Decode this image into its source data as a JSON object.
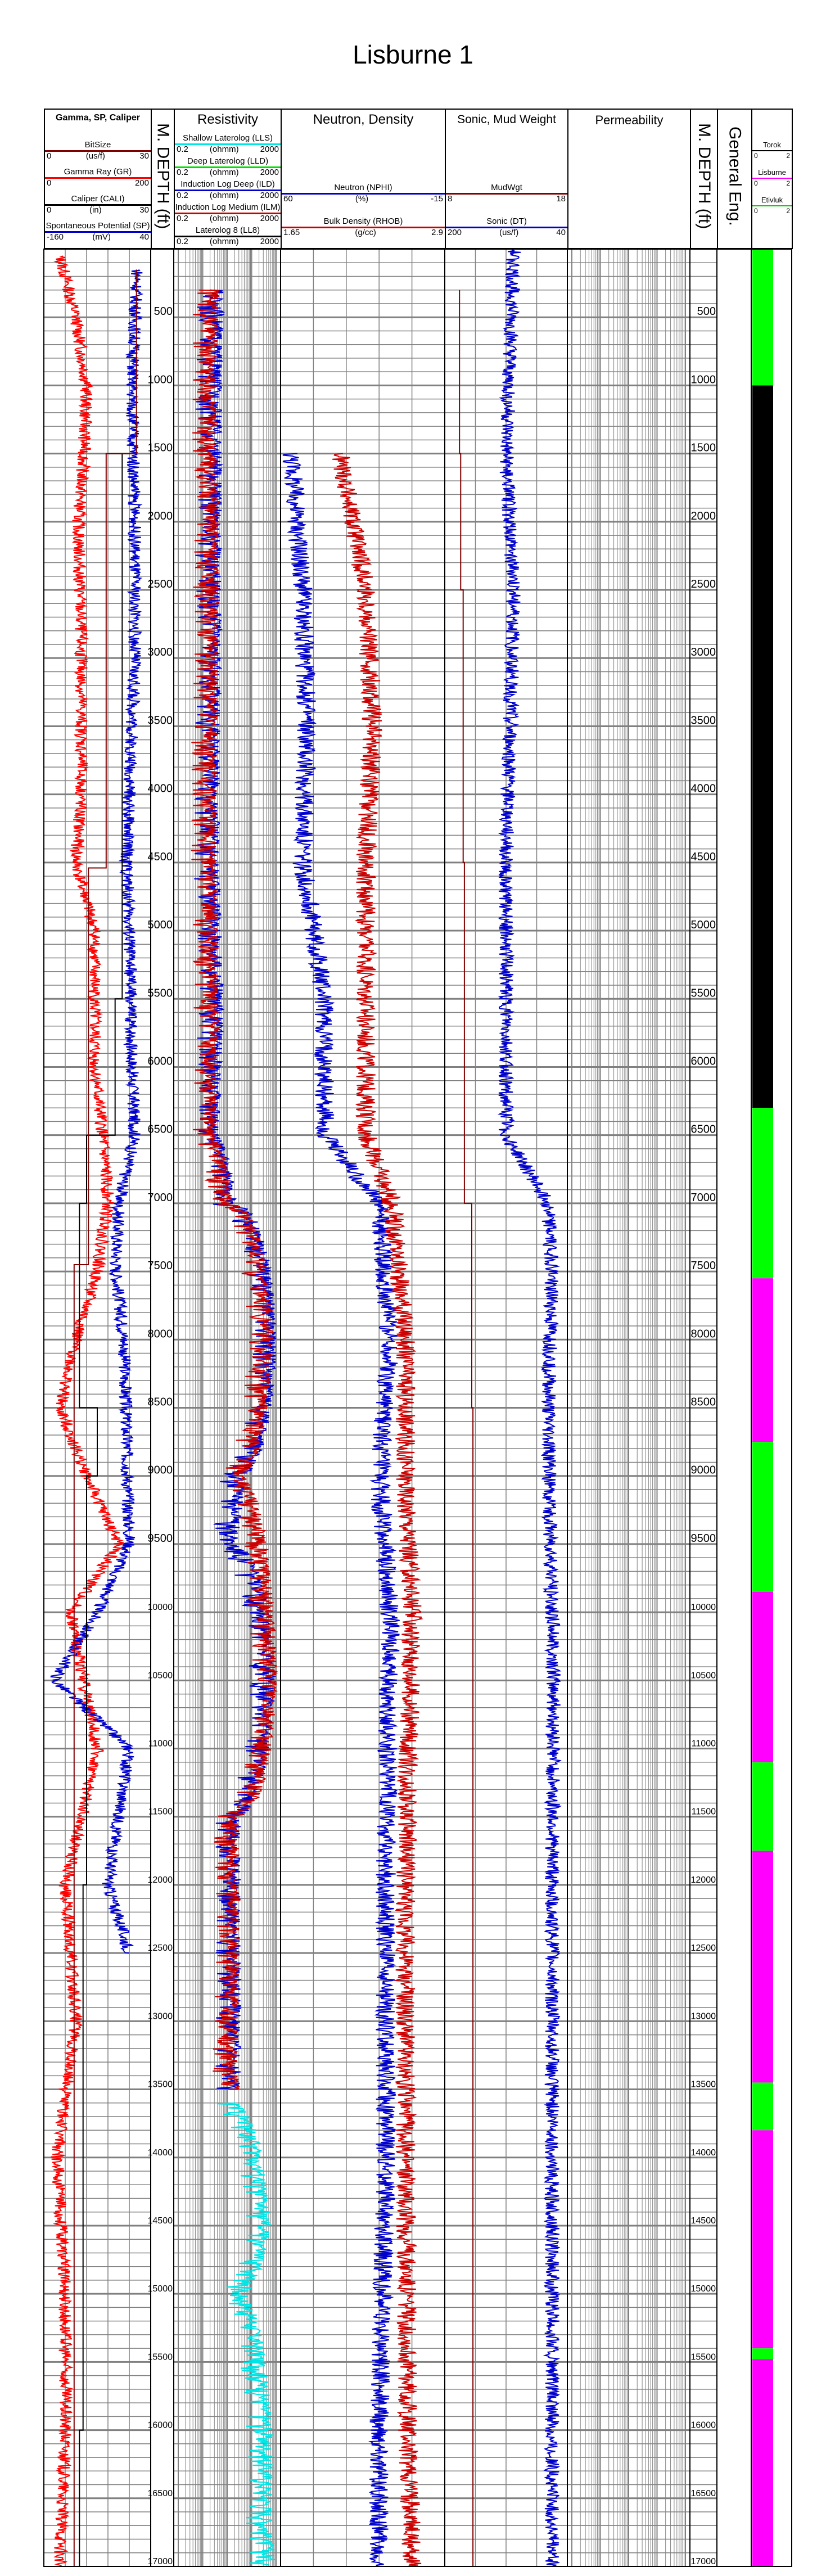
{
  "title": "Lisburne 1",
  "tracks": {
    "gamma": {
      "title": "Gamma, SP, Caliper",
      "curves": [
        {
          "name": "BitSize",
          "unit": "(us/f)",
          "min": "0",
          "max": "30",
          "color": "#800000"
        },
        {
          "name": "Gamma Ray (GR)",
          "unit": "",
          "min": "0",
          "max": "200",
          "color": "#ff0000"
        },
        {
          "name": "Caliper (CALI)",
          "unit": "(in)",
          "min": "0",
          "max": "30",
          "color": "#000000"
        },
        {
          "name": "Spontaneous Potential (SP)",
          "unit": "(mV)",
          "min": "-160",
          "max": "40",
          "color": "#0000cc"
        }
      ]
    },
    "depth_left": {
      "title": "M. DEPTH (ft)"
    },
    "resistivity": {
      "title": "Resistivity",
      "curves": [
        {
          "name": "Shallow Laterolog (LLS)",
          "unit": "(ohmm)",
          "min": "0.2",
          "max": "2000",
          "color": "#00e5e5"
        },
        {
          "name": "Deep Laterolog (LLD)",
          "unit": "(ohmm)",
          "min": "0.2",
          "max": "2000",
          "color": "#00e000"
        },
        {
          "name": "Induction Log Deep (ILD)",
          "unit": "(ohmm)",
          "min": "0.2",
          "max": "2000",
          "color": "#0000cc"
        },
        {
          "name": "Induction Log Medium (ILM)",
          "unit": "(ohmm)",
          "min": "0.2",
          "max": "2000",
          "color": "#cc0000"
        },
        {
          "name": "Laterolog 8 (LL8)",
          "unit": "(ohmm)",
          "min": "0.2",
          "max": "2000",
          "color": "#000000"
        }
      ]
    },
    "neutron_density": {
      "title": "Neutron, Density",
      "curves": [
        {
          "name": "Neutron (NPHI)",
          "unit": "(%)",
          "min": "60",
          "max": "-15",
          "color": "#0000cc"
        },
        {
          "name": "Bulk Density (RHOB)",
          "unit": "(g/cc)",
          "min": "1.65",
          "max": "2.9",
          "color": "#cc0000"
        }
      ]
    },
    "sonic_mud": {
      "title": "Sonic, Mud Weight",
      "curves": [
        {
          "name": "MudWgt",
          "unit": "",
          "min": "8",
          "max": "18",
          "color": "#800000"
        },
        {
          "name": "Sonic (DT)",
          "unit": "(us/f)",
          "min": "200",
          "max": "40",
          "color": "#0000cc"
        }
      ]
    },
    "permeability": {
      "title": "Permeability"
    },
    "depth_right": {
      "title": "M. DEPTH (ft)"
    },
    "general_eng": {
      "title": "General Eng."
    },
    "formations": {
      "curves": [
        {
          "name": "Torok",
          "min": "0",
          "max": "2",
          "color": "#000000"
        },
        {
          "name": "Lisburne",
          "min": "0",
          "max": "2",
          "color": "#ff00ff"
        },
        {
          "name": "Etivluk",
          "min": "0",
          "max": "2",
          "color": "#00ff00"
        }
      ]
    }
  },
  "chart_data": {
    "type": "line",
    "title": "Lisburne 1",
    "xlabel": "",
    "ylabel": "M. DEPTH (ft)",
    "ylim": [
      0,
      17000
    ],
    "depth_ticks": [
      "500",
      "1000",
      "1500",
      "2000",
      "2500",
      "3000",
      "3500",
      "4000",
      "4500",
      "5000",
      "5500",
      "6000",
      "6500",
      "7000",
      "7500",
      "8000",
      "8500",
      "9000",
      "9500",
      "10000",
      "10500",
      "11000",
      "11500",
      "12000",
      "12500",
      "13000",
      "13500",
      "14000",
      "14500",
      "15000",
      "15500",
      "16000",
      "16500",
      "17000"
    ],
    "formation_intervals": [
      {
        "top": 0,
        "base": 1000,
        "formation": "Etivluk",
        "color": "#00ff00"
      },
      {
        "top": 1000,
        "base": 6300,
        "formation": "Torok",
        "color": "#000000"
      },
      {
        "top": 6300,
        "base": 7550,
        "formation": "Etivluk",
        "color": "#00ff00"
      },
      {
        "top": 7550,
        "base": 8750,
        "formation": "Lisburne",
        "color": "#ff00ff"
      },
      {
        "top": 8750,
        "base": 9850,
        "formation": "Etivluk",
        "color": "#00ff00"
      },
      {
        "top": 9850,
        "base": 11100,
        "formation": "Lisburne",
        "color": "#ff00ff"
      },
      {
        "top": 11100,
        "base": 11750,
        "formation": "Etivluk",
        "color": "#00ff00"
      },
      {
        "top": 11750,
        "base": 13450,
        "formation": "Lisburne",
        "color": "#ff00ff"
      },
      {
        "top": 13450,
        "base": 13800,
        "formation": "Etivluk",
        "color": "#00ff00"
      },
      {
        "top": 13800,
        "base": 15400,
        "formation": "Lisburne",
        "color": "#ff00ff"
      },
      {
        "top": 15400,
        "base": 15480,
        "formation": "Etivluk",
        "color": "#00ff00"
      },
      {
        "top": 15480,
        "base": 17000,
        "formation": "Lisburne",
        "color": "#ff00ff"
      }
    ],
    "series": [
      {
        "name": "Gamma Ray (GR)",
        "track": "gamma",
        "scale": [
          0,
          200
        ],
        "color": "#ff0000",
        "depth": [
          50,
          500,
          1000,
          1500,
          2000,
          3000,
          4000,
          4500,
          5000,
          6000,
          6500,
          7000,
          7500,
          8000,
          8500,
          9000,
          9500,
          10000,
          11000,
          12000,
          13000,
          14000,
          15000,
          16000,
          17000
        ],
        "values": [
          30,
          60,
          80,
          75,
          65,
          70,
          70,
          60,
          95,
          95,
          110,
          120,
          100,
          60,
          30,
          80,
          140,
          50,
          100,
          40,
          60,
          25,
          40,
          40,
          30
        ]
      },
      {
        "name": "Spontaneous Potential (SP)",
        "track": "gamma",
        "scale": [
          -160,
          40
        ],
        "color": "#0000cc",
        "depth": [
          150,
          1000,
          2000,
          3000,
          4000,
          4500,
          5000,
          6000,
          6500,
          7000,
          7500,
          8000,
          9500,
          10000,
          10500,
          11000,
          12000,
          12500
        ],
        "values": [
          15,
          5,
          10,
          10,
          0,
          -5,
          0,
          5,
          10,
          -20,
          -25,
          -10,
          0,
          -60,
          -140,
          0,
          -40,
          0
        ]
      },
      {
        "name": "Caliper (CALI)",
        "track": "gamma",
        "scale": [
          0,
          30
        ],
        "color": "#000000",
        "depth": [
          1500,
          2000,
          3000,
          4500,
          5500,
          6500,
          7000,
          8500,
          9000,
          12000,
          16000,
          17000
        ],
        "values": [
          22,
          22,
          22,
          22,
          20,
          12,
          10,
          15,
          12,
          11,
          10,
          10
        ]
      },
      {
        "name": "BitSize",
        "track": "gamma",
        "scale": [
          0,
          30
        ],
        "color": "#800000",
        "depth": [
          150,
          1500,
          4540,
          7450,
          7450,
          17000
        ],
        "values": [
          26,
          17.5,
          12.5,
          12.5,
          8.5,
          8.5
        ]
      },
      {
        "name": "Induction Log Deep (ILD)",
        "track": "resistivity",
        "scale": [
          0.2,
          2000
        ],
        "color": "#0000cc",
        "depth": [
          300,
          1000,
          2000,
          4500,
          5500,
          6500,
          7000,
          7500,
          8000,
          9000,
          9500,
          10500,
          11500,
          13500
        ],
        "values": [
          6,
          5,
          5,
          4,
          6,
          4,
          20,
          500,
          1000,
          50,
          20,
          800,
          30,
          30
        ]
      },
      {
        "name": "Induction Log Medium (ILM)",
        "track": "resistivity",
        "scale": [
          0.2,
          2000
        ],
        "color": "#cc0000",
        "depth": [
          300,
          1000,
          2000,
          4500,
          5500,
          6500,
          7000,
          8000,
          9000,
          10500,
          11500,
          13500
        ],
        "values": [
          4,
          3,
          4,
          3,
          4,
          3,
          15,
          700,
          40,
          1000,
          25,
          25
        ]
      },
      {
        "name": "Shallow Laterolog (LLS)",
        "track": "resistivity",
        "scale": [
          0.2,
          2000
        ],
        "color": "#00e5e5",
        "depth": [
          13600,
          14500,
          15000,
          16000,
          16800,
          17000
        ],
        "values": [
          20,
          500,
          50,
          600,
          600,
          800
        ]
      },
      {
        "name": "Neutron (NPHI)",
        "track": "neutron_density",
        "scale": [
          60,
          -15
        ],
        "color": "#0000cc",
        "depth": [
          1500,
          2500,
          3500,
          4500,
          5500,
          6500,
          7000,
          8000,
          9000,
          10000,
          12000,
          14000,
          16000,
          17000
        ],
        "values": [
          55,
          50,
          48,
          50,
          40,
          40,
          15,
          10,
          15,
          10,
          12,
          12,
          15,
          15
        ]
      },
      {
        "name": "Bulk Density (RHOB)",
        "track": "neutron_density",
        "scale": [
          1.65,
          2.9
        ],
        "color": "#cc0000",
        "depth": [
          1500,
          2500,
          3500,
          4500,
          5500,
          6500,
          7000,
          8000,
          9000,
          10000,
          12000,
          14000,
          16000,
          17000
        ],
        "values": [
          2.1,
          2.3,
          2.35,
          2.3,
          2.3,
          2.3,
          2.5,
          2.6,
          2.6,
          2.65,
          2.6,
          2.6,
          2.62,
          2.65
        ]
      },
      {
        "name": "MudWgt",
        "track": "sonic_mud",
        "scale": [
          8,
          18
        ],
        "color": "#800000",
        "depth": [
          300,
          1500,
          2500,
          4500,
          6500,
          7000,
          8500,
          9500,
          12000,
          17000
        ],
        "values": [
          9.2,
          9.3,
          9.5,
          9.6,
          9.6,
          10.2,
          10.3,
          10.3,
          10.3,
          10.3
        ]
      },
      {
        "name": "Sonic (DT)",
        "track": "sonic_mud",
        "scale": [
          200,
          40
        ],
        "color": "#0000cc",
        "depth": [
          0,
          1500,
          2500,
          3500,
          4500,
          5500,
          6500,
          7000,
          7500,
          8500,
          9500,
          10500,
          12000,
          14000,
          16000,
          17000
        ],
        "values": [
          110,
          120,
          110,
          115,
          120,
          120,
          120,
          65,
          60,
          65,
          62,
          58,
          60,
          60,
          60,
          60
        ]
      }
    ]
  }
}
